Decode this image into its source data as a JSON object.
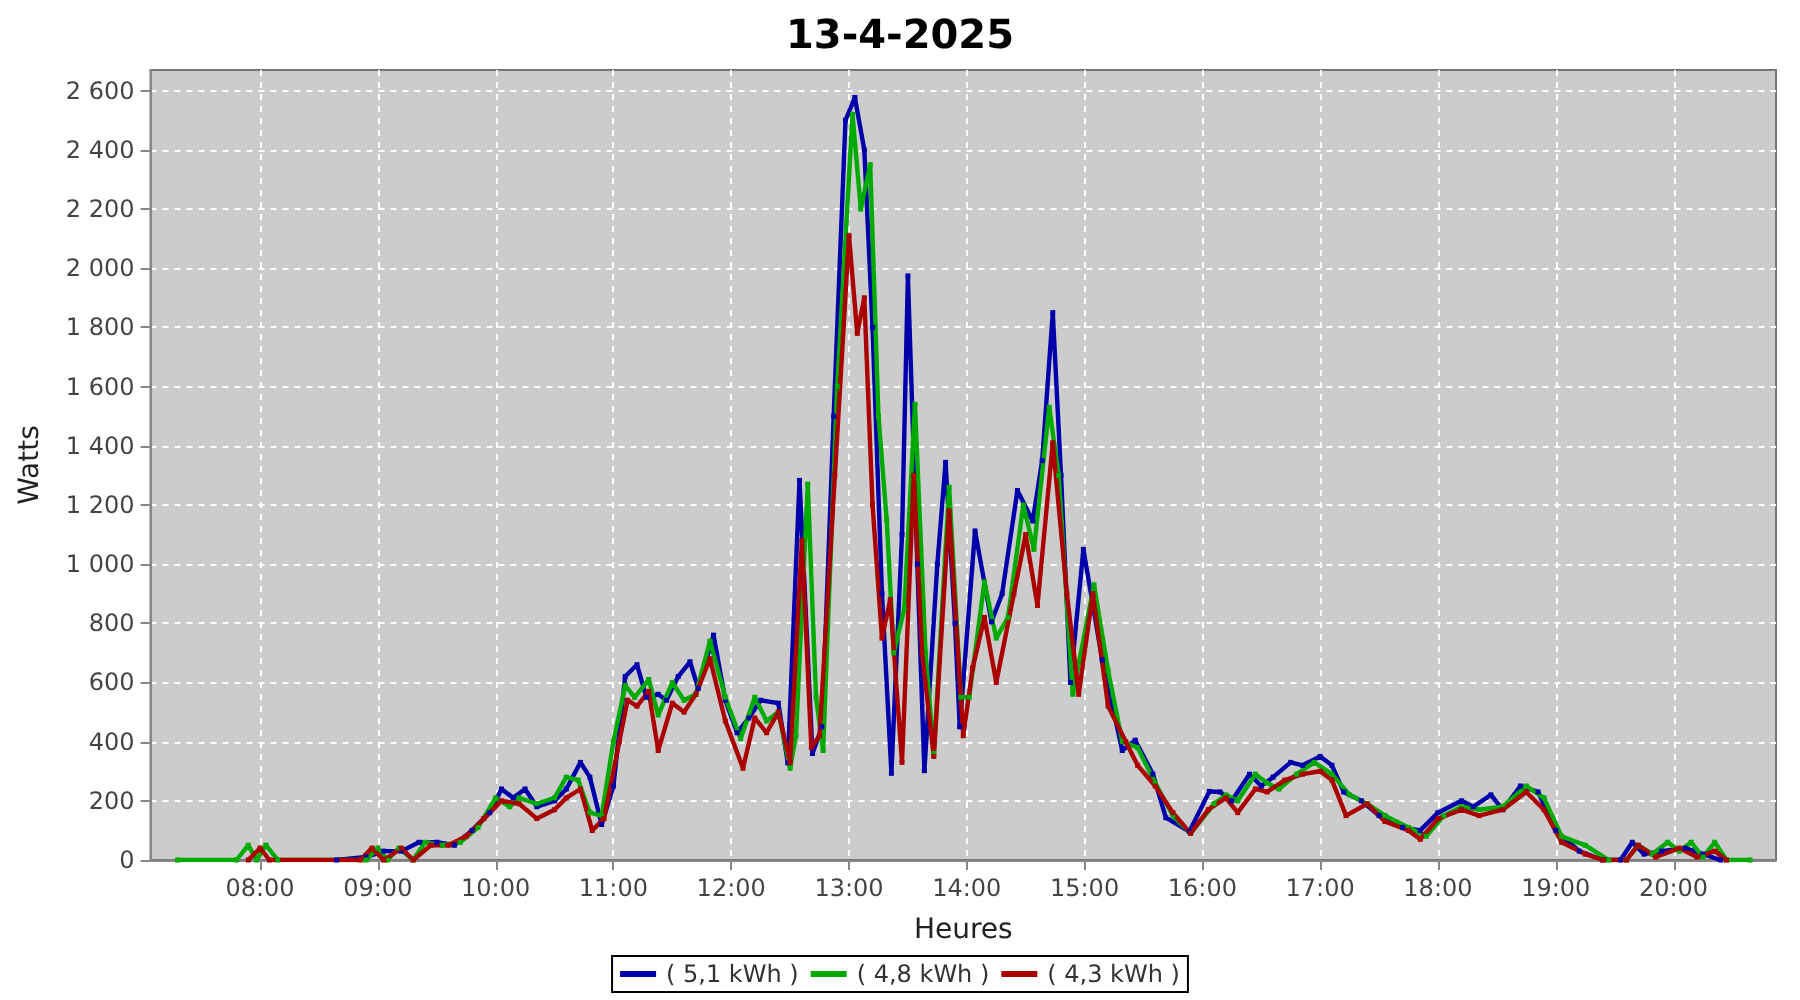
{
  "chart_data": {
    "type": "line",
    "title": "13-4-2025",
    "xlabel": "Heures",
    "ylabel": "Watts",
    "xlim": [
      7.07,
      20.87
    ],
    "ylim": [
      0,
      2670
    ],
    "xticks": [
      {
        "value": 8,
        "label": "08:00"
      },
      {
        "value": 9,
        "label": "09:00"
      },
      {
        "value": 10,
        "label": "10:00"
      },
      {
        "value": 11,
        "label": "11:00"
      },
      {
        "value": 12,
        "label": "12:00"
      },
      {
        "value": 13,
        "label": "13:00"
      },
      {
        "value": 14,
        "label": "14:00"
      },
      {
        "value": 15,
        "label": "15:00"
      },
      {
        "value": 16,
        "label": "16:00"
      },
      {
        "value": 17,
        "label": "17:00"
      },
      {
        "value": 18,
        "label": "18:00"
      },
      {
        "value": 19,
        "label": "19:00"
      },
      {
        "value": 20,
        "label": "20:00"
      }
    ],
    "yticks": [
      0,
      200,
      400,
      600,
      800,
      {
        "value": 1000,
        "label": "1 000"
      },
      {
        "value": 1200,
        "label": "1 200"
      },
      {
        "value": 1400,
        "label": "1 400"
      },
      {
        "value": 1600,
        "label": "1 600"
      },
      {
        "value": 1800,
        "label": "1 800"
      },
      {
        "value": 2000,
        "label": "2 000"
      },
      {
        "value": 2200,
        "label": "2 200"
      },
      {
        "value": 2400,
        "label": "2 400"
      },
      {
        "value": 2600,
        "label": "2 600"
      }
    ],
    "grid": true,
    "legend": "bottom",
    "marker": "square",
    "line_style": "solid",
    "series": [
      {
        "name": "( 5,1 kWh )",
        "color": "#0000aa",
        "x": [
          8.65,
          8.9,
          9.05,
          9.2,
          9.35,
          9.5,
          9.65,
          9.8,
          9.95,
          10.05,
          10.15,
          10.25,
          10.35,
          10.5,
          10.6,
          10.72,
          10.8,
          10.9,
          11.0,
          11.1,
          11.2,
          11.28,
          11.38,
          11.45,
          11.55,
          11.65,
          11.72,
          11.85,
          11.95,
          12.05,
          12.15,
          12.25,
          12.4,
          12.48,
          12.58,
          12.69,
          12.77,
          12.87,
          12.97,
          13.05,
          13.13,
          13.2,
          13.28,
          13.36,
          13.45,
          13.5,
          13.58,
          13.64,
          13.75,
          13.82,
          13.9,
          13.94,
          14.07,
          14.21,
          14.3,
          14.43,
          14.56,
          14.64,
          14.73,
          14.8,
          14.88,
          14.99,
          15.15,
          15.32,
          15.43,
          15.58,
          15.69,
          15.89,
          16.06,
          16.15,
          16.25,
          16.4,
          16.5,
          16.6,
          16.75,
          16.85,
          17.0,
          17.1,
          17.2,
          17.35,
          17.5,
          17.7,
          17.85,
          18.0,
          18.2,
          18.3,
          18.45,
          18.55,
          18.7,
          18.85,
          19.0,
          19.2,
          19.4,
          19.55,
          19.65,
          19.75,
          19.9,
          20.1,
          20.25,
          20.4
        ],
        "values": [
          0,
          10,
          30,
          30,
          60,
          60,
          50,
          100,
          160,
          240,
          210,
          240,
          180,
          200,
          240,
          330,
          280,
          120,
          250,
          620,
          660,
          550,
          560,
          540,
          620,
          670,
          580,
          760,
          540,
          430,
          480,
          540,
          530,
          328,
          1283,
          360,
          450,
          1500,
          2500,
          2577,
          2400,
          1800,
          900,
          293,
          1100,
          1974,
          1000,
          302,
          1000,
          1344,
          800,
          450,
          1112,
          805,
          900,
          1249,
          1146,
          1350,
          1850,
          1300,
          600,
          1050,
          676,
          370,
          405,
          290,
          143,
          96,
          232,
          230,
          200,
          290,
          250,
          280,
          330,
          320,
          350,
          320,
          230,
          200,
          150,
          110,
          100,
          160,
          200,
          180,
          220,
          170,
          250,
          230,
          100,
          30,
          0,
          0,
          60,
          20,
          30,
          40,
          20,
          0
        ]
      },
      {
        "name": "( 4,8 kWh )",
        "color": "#00aa00",
        "x": [
          7.3,
          7.8,
          7.9,
          7.97,
          8.05,
          8.15,
          8.9,
          9.0,
          9.08,
          9.18,
          9.3,
          9.4,
          9.55,
          9.7,
          9.85,
          10.0,
          10.12,
          10.2,
          10.35,
          10.5,
          10.6,
          10.7,
          10.8,
          10.9,
          11.0,
          11.1,
          11.18,
          11.3,
          11.38,
          11.5,
          11.6,
          11.7,
          11.82,
          11.95,
          12.08,
          12.2,
          12.3,
          12.4,
          12.5,
          12.55,
          12.65,
          12.72,
          12.78,
          12.9,
          13.03,
          13.1,
          13.18,
          13.25,
          13.32,
          13.38,
          13.47,
          13.56,
          13.65,
          13.72,
          13.85,
          13.95,
          14.02,
          14.15,
          14.25,
          14.35,
          14.48,
          14.57,
          14.7,
          14.78,
          14.9,
          15.08,
          15.2,
          15.32,
          15.45,
          15.6,
          15.75,
          15.9,
          16.1,
          16.2,
          16.3,
          16.45,
          16.55,
          16.65,
          16.8,
          16.95,
          17.1,
          17.25,
          17.4,
          17.55,
          17.75,
          17.9,
          18.05,
          18.2,
          18.35,
          18.55,
          18.75,
          18.9,
          19.05,
          19.25,
          19.45,
          19.6,
          19.7,
          19.82,
          19.95,
          20.05,
          20.15,
          20.25,
          20.35,
          20.45,
          20.65
        ],
        "values": [
          0,
          0,
          50,
          0,
          50,
          0,
          0,
          40,
          0,
          40,
          0,
          60,
          50,
          60,
          110,
          210,
          180,
          210,
          190,
          210,
          280,
          270,
          160,
          150,
          400,
          590,
          550,
          610,
          490,
          600,
          540,
          560,
          740,
          550,
          410,
          550,
          470,
          500,
          310,
          420,
          1270,
          550,
          370,
          1600,
          2520,
          2200,
          2350,
          1500,
          1150,
          700,
          850,
          1540,
          700,
          360,
          1260,
          550,
          550,
          940,
          750,
          820,
          1200,
          1050,
          1530,
          1300,
          560,
          930,
          640,
          400,
          380,
          260,
          150,
          90,
          190,
          220,
          200,
          290,
          260,
          240,
          290,
          330,
          290,
          220,
          190,
          150,
          110,
          80,
          150,
          180,
          170,
          180,
          250,
          210,
          80,
          50,
          0,
          0,
          50,
          20,
          60,
          30,
          60,
          10,
          60,
          0,
          0
        ]
      },
      {
        "name": "( 4,3 kWh )",
        "color": "#aa0000",
        "x": [
          7.9,
          8.0,
          8.08,
          8.85,
          8.95,
          9.05,
          9.2,
          9.3,
          9.45,
          9.6,
          9.75,
          9.9,
          10.05,
          10.2,
          10.35,
          10.5,
          10.6,
          10.72,
          10.82,
          10.92,
          11.05,
          11.12,
          11.2,
          11.3,
          11.38,
          11.5,
          11.6,
          11.7,
          11.82,
          11.95,
          12.1,
          12.2,
          12.3,
          12.4,
          12.5,
          12.6,
          12.68,
          12.75,
          12.88,
          13.0,
          13.07,
          13.13,
          13.2,
          13.28,
          13.35,
          13.45,
          13.55,
          13.62,
          13.72,
          13.85,
          13.97,
          14.05,
          14.15,
          14.25,
          14.4,
          14.5,
          14.6,
          14.73,
          14.85,
          14.95,
          15.07,
          15.2,
          15.35,
          15.45,
          15.6,
          15.75,
          15.9,
          16.05,
          16.2,
          16.3,
          16.45,
          16.55,
          16.7,
          16.85,
          17.0,
          17.1,
          17.22,
          17.4,
          17.55,
          17.75,
          17.85,
          18.0,
          18.2,
          18.35,
          18.55,
          18.75,
          18.9,
          19.05,
          19.25,
          19.4,
          19.6,
          19.7,
          19.85,
          20.05,
          20.2,
          20.35,
          20.45
        ],
        "values": [
          0,
          40,
          0,
          0,
          40,
          0,
          40,
          0,
          50,
          50,
          80,
          140,
          200,
          190,
          140,
          170,
          210,
          240,
          100,
          140,
          400,
          540,
          520,
          570,
          370,
          530,
          500,
          560,
          680,
          470,
          310,
          480,
          430,
          500,
          330,
          1080,
          380,
          420,
          1300,
          2110,
          1780,
          1900,
          1200,
          750,
          880,
          330,
          1300,
          700,
          350,
          1180,
          420,
          650,
          820,
          600,
          900,
          1100,
          860,
          1410,
          900,
          560,
          900,
          520,
          400,
          320,
          250,
          160,
          90,
          170,
          210,
          160,
          240,
          230,
          270,
          290,
          300,
          270,
          150,
          190,
          130,
          100,
          70,
          140,
          170,
          150,
          170,
          230,
          170,
          60,
          20,
          0,
          0,
          50,
          10,
          40,
          10,
          30,
          0
        ]
      }
    ]
  }
}
